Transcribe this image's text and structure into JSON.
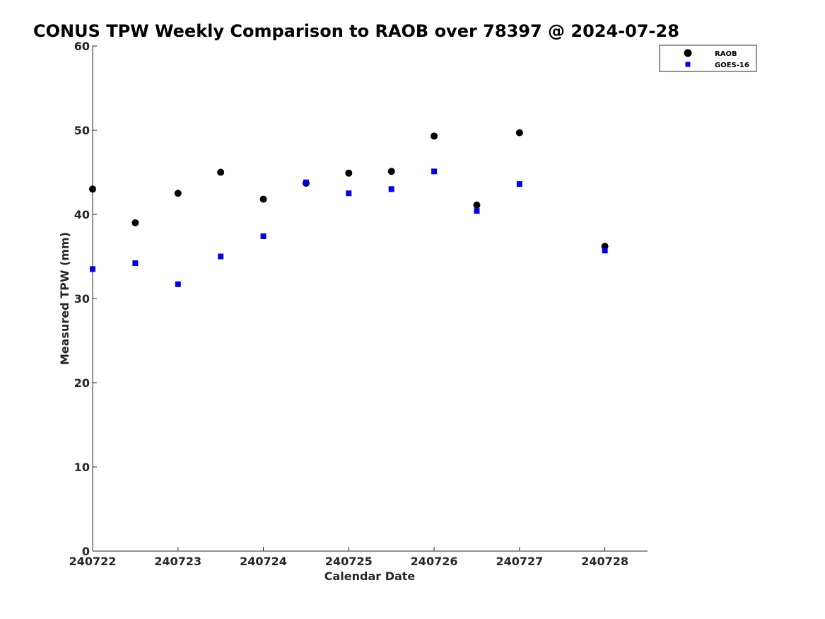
{
  "chart_data": {
    "type": "scatter",
    "title": "CONUS TPW Weekly Comparison to RAOB over 78397 @ 2024-07-28",
    "xlabel": "Calendar Date",
    "ylabel": "Measured TPW (mm)",
    "xlim": [
      "2024-07-22 00:00",
      "2024-07-28 12:00"
    ],
    "ylim": [
      0,
      60
    ],
    "x_ticks": [
      "240722",
      "240723",
      "240724",
      "240725",
      "240726",
      "240727",
      "240728"
    ],
    "y_ticks": [
      "0",
      "10",
      "20",
      "30",
      "40",
      "50",
      "60"
    ],
    "grid": false,
    "legend": "top-right",
    "series": [
      {
        "name": "RAOB",
        "marker": "circle",
        "color": "#000000",
        "points": [
          {
            "x": "2024-07-22 00:00",
            "y": 43.0
          },
          {
            "x": "2024-07-22 12:00",
            "y": 39.0
          },
          {
            "x": "2024-07-23 00:00",
            "y": 42.5
          },
          {
            "x": "2024-07-23 12:00",
            "y": 45.0
          },
          {
            "x": "2024-07-24 00:00",
            "y": 41.8
          },
          {
            "x": "2024-07-24 12:00",
            "y": 43.7
          },
          {
            "x": "2024-07-25 00:00",
            "y": 44.9
          },
          {
            "x": "2024-07-25 12:00",
            "y": 45.1
          },
          {
            "x": "2024-07-26 00:00",
            "y": 49.3
          },
          {
            "x": "2024-07-26 12:00",
            "y": 41.1
          },
          {
            "x": "2024-07-27 00:00",
            "y": 49.7
          },
          {
            "x": "2024-07-28 00:00",
            "y": 36.2
          }
        ]
      },
      {
        "name": "GOES-16",
        "marker": "square",
        "color": "#0000ee",
        "points": [
          {
            "x": "2024-07-22 00:00",
            "y": 33.5
          },
          {
            "x": "2024-07-22 12:00",
            "y": 34.2
          },
          {
            "x": "2024-07-23 00:00",
            "y": 31.7
          },
          {
            "x": "2024-07-23 12:00",
            "y": 35.0
          },
          {
            "x": "2024-07-24 00:00",
            "y": 37.4
          },
          {
            "x": "2024-07-24 12:00",
            "y": 43.8
          },
          {
            "x": "2024-07-25 00:00",
            "y": 42.5
          },
          {
            "x": "2024-07-25 12:00",
            "y": 43.0
          },
          {
            "x": "2024-07-26 00:00",
            "y": 45.1
          },
          {
            "x": "2024-07-26 12:00",
            "y": 40.4
          },
          {
            "x": "2024-07-27 00:00",
            "y": 43.6
          },
          {
            "x": "2024-07-28 00:00",
            "y": 35.7
          }
        ]
      }
    ]
  }
}
